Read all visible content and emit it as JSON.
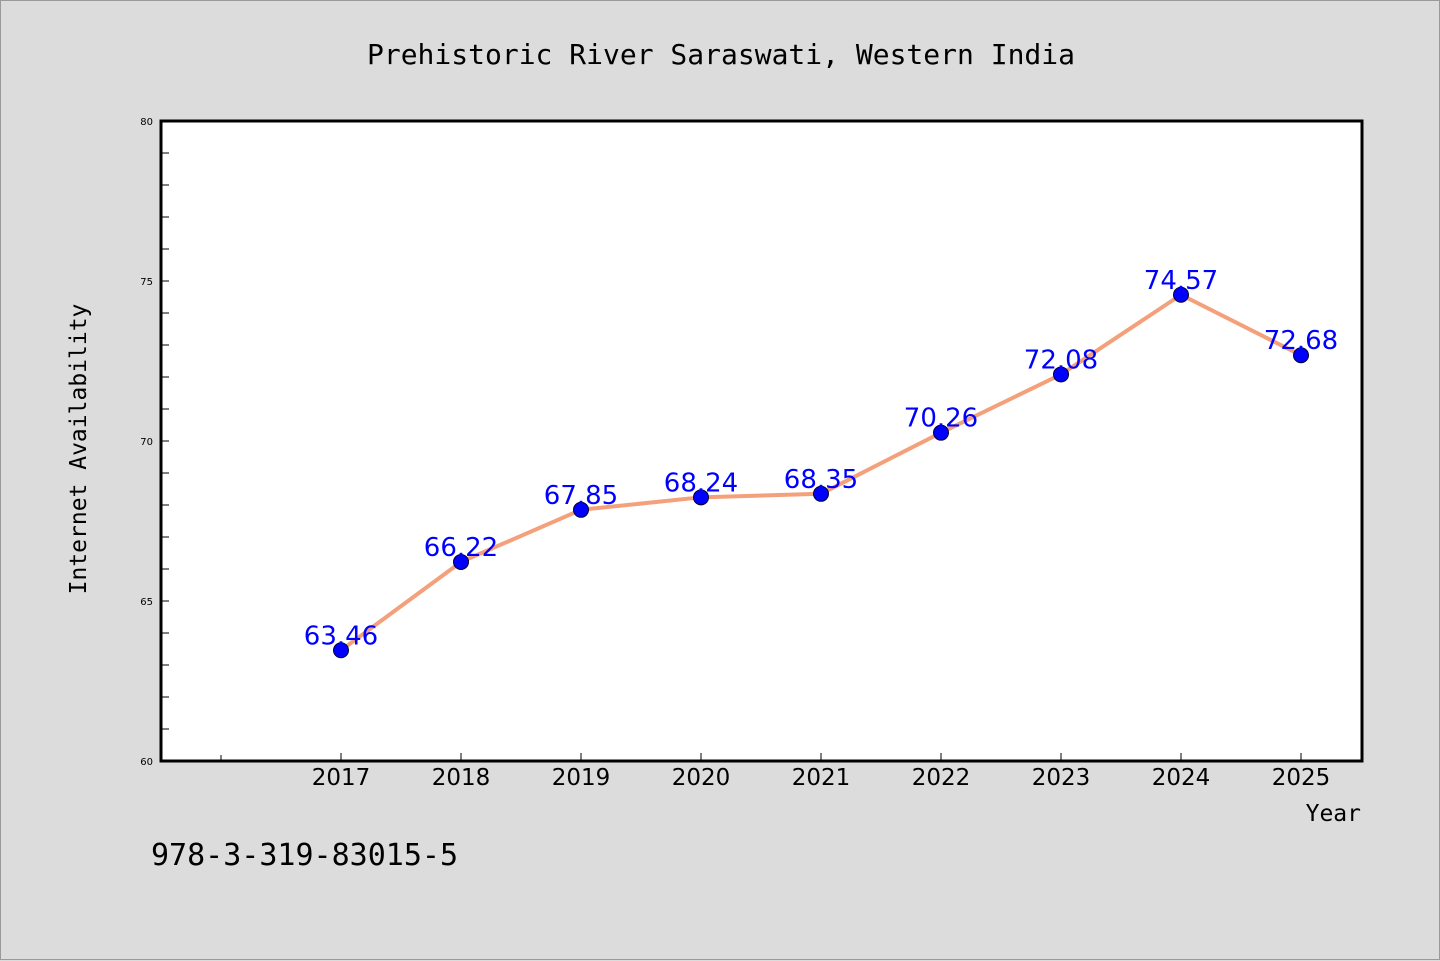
{
  "chart_data": {
    "type": "line",
    "title": "Prehistoric River Saraswati, Western India",
    "xlabel": "Year",
    "ylabel": "Internet Availability",
    "categories": [
      "2017",
      "2018",
      "2019",
      "2020",
      "2021",
      "2022",
      "2023",
      "2024",
      "2025"
    ],
    "series": [
      {
        "values": [
          63.46,
          66.22,
          67.85,
          68.24,
          68.35,
          70.26,
          72.08,
          74.57,
          72.68
        ],
        "line_color": "#f4a07a",
        "marker_color": "#0000ff"
      }
    ],
    "data_labels": [
      "63.46",
      "66.22",
      "67.85",
      "68.24",
      "68.35",
      "70.26",
      "72.08",
      "74.57",
      "72.68"
    ],
    "ylim": [
      60,
      80
    ],
    "yticks": [
      "60",
      "65",
      "70",
      "75",
      "80"
    ],
    "grid": false,
    "legend": "none"
  },
  "footer": {
    "isbn": "978-3-319-83015-5"
  },
  "colors": {
    "background": "#dcdcdc",
    "plot_background": "#ffffff",
    "line": "#f4a07a",
    "marker": "#0000ff",
    "data_label": "#0000ff"
  }
}
